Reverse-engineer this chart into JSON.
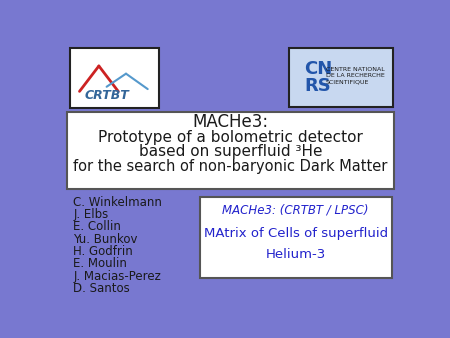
{
  "background_color": "#7878d0",
  "title_box_text_line1": "MACHe3:",
  "title_box_text_line2": "Prototype of a bolometric detector",
  "title_box_text_line3": "based on superfluid ³He",
  "title_box_text_line4": "for the search of non-baryonic Dark Matter",
  "authors": [
    "C. Winkelmann",
    "J. Elbs",
    "E. Collin",
    "Yu. Bunkov",
    "H. Godfrin",
    "E. Moulin",
    "J. Macias-Perez",
    "D. Santos"
  ],
  "acronym_box_line1": "MACHe3: (CRTBT / LPSC)",
  "text_color_dark": "#1a1a1a",
  "text_color_blue": "#2222cc",
  "box_bg": "#ffffff",
  "logo_right_color": "#c8d8f0"
}
